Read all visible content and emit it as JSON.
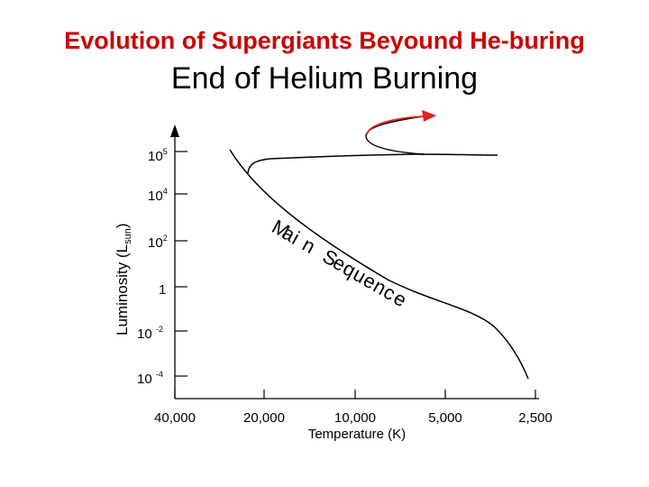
{
  "header": {
    "title": "Evolution of Supergiants Beyound He-buring",
    "subtitle": "End of Helium Burning",
    "title_color": "#cc0000"
  },
  "diagram": {
    "y_axis_label_main": "Luminosity (L",
    "y_axis_label_sub": "sun",
    "y_axis_label_close": ")",
    "y_ticks": [
      {
        "base": "10",
        "exp": "5"
      },
      {
        "base": "10",
        "exp": "4"
      },
      {
        "base": "10",
        "exp": "2"
      },
      {
        "base": "1",
        "exp": ""
      },
      {
        "base": "10 ",
        "exp": "-2"
      },
      {
        "base": "10 ",
        "exp": "-4"
      }
    ],
    "x_ticks": [
      "40,000",
      "20,000",
      "10,000",
      "5,000",
      "2,500"
    ],
    "x_axis_label": "Temperature (K)",
    "main_sequence_label": "Main Sequence",
    "arrow_color": "#e02020"
  }
}
